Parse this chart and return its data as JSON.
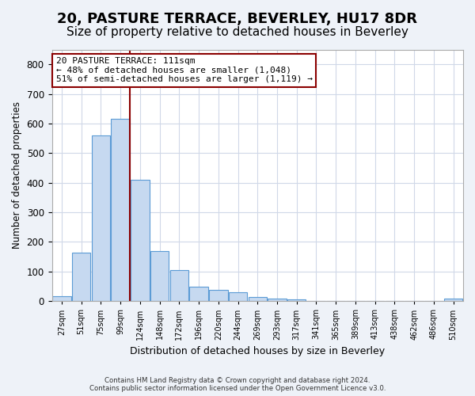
{
  "title": "20, PASTURE TERRACE, BEVERLEY, HU17 8DR",
  "subtitle": "Size of property relative to detached houses in Beverley",
  "xlabel": "Distribution of detached houses by size in Beverley",
  "ylabel": "Number of detached properties",
  "bin_edges": [
    27,
    51,
    75,
    99,
    124,
    148,
    172,
    196,
    220,
    244,
    269,
    293,
    317,
    341,
    365,
    389,
    413,
    438,
    462,
    486,
    510
  ],
  "bar_heights": [
    18,
    165,
    560,
    615,
    410,
    170,
    105,
    50,
    38,
    30,
    15,
    10,
    7,
    0,
    0,
    0,
    0,
    0,
    0,
    0,
    8
  ],
  "bar_color": "#c6d9f0",
  "bar_edgecolor": "#5b9bd5",
  "grid_color": "#d0d8e8",
  "vline_x": 111,
  "vline_color": "#8b0000",
  "annotation_text": "20 PASTURE TERRACE: 111sqm\n← 48% of detached houses are smaller (1,048)\n51% of semi-detached houses are larger (1,119) →",
  "annotation_box_color": "#8b0000",
  "ylim": [
    0,
    850
  ],
  "yticks": [
    0,
    100,
    200,
    300,
    400,
    500,
    600,
    700,
    800
  ],
  "footnote": "Contains HM Land Registry data © Crown copyright and database right 2024.\nContains public sector information licensed under the Open Government Licence v3.0.",
  "bg_color": "#eef2f8",
  "plot_bg_color": "#ffffff",
  "title_fontsize": 13,
  "subtitle_fontsize": 11,
  "tick_labels": [
    "27sqm",
    "51sqm",
    "75sqm",
    "99sqm",
    "124sqm",
    "148sqm",
    "172sqm",
    "196sqm",
    "220sqm",
    "244sqm",
    "269sqm",
    "293sqm",
    "317sqm",
    "341sqm",
    "365sqm",
    "389sqm",
    "413sqm",
    "438sqm",
    "462sqm",
    "486sqm",
    "510sqm"
  ]
}
